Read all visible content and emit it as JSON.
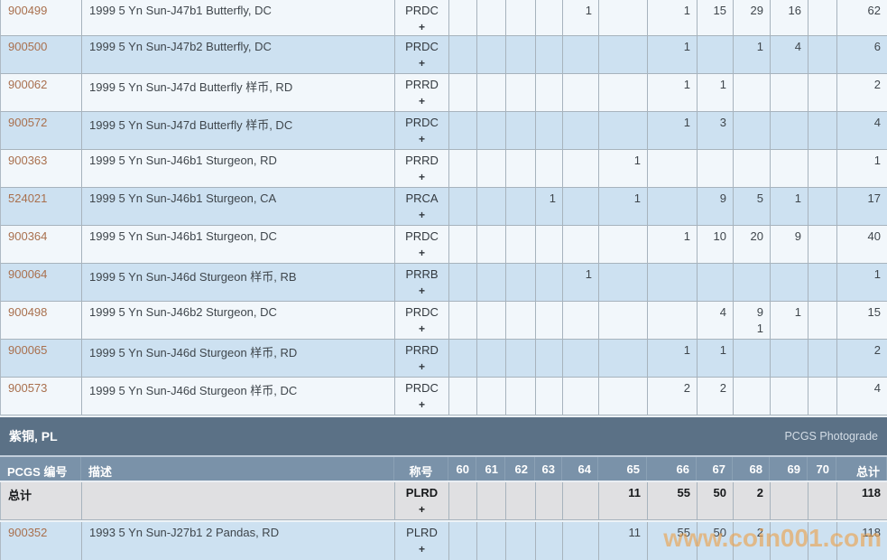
{
  "columns": {
    "id_label": "PCGS 编号",
    "desc_label": "描述",
    "designation_label": "称号",
    "total_label": "总计"
  },
  "grade_headers": [
    "60",
    "61",
    "62",
    "63",
    "64",
    "65",
    "66",
    "67",
    "68",
    "69",
    "70"
  ],
  "top_section": {
    "rows": [
      {
        "id": "900499",
        "desc": "1999 5 Yn Sun-J47b1 Butterfly, DC",
        "designation": "PRDC",
        "plus": "+",
        "grades": [
          "",
          "",
          "",
          "",
          "1",
          "",
          "1",
          "15",
          "29",
          "16",
          ""
        ],
        "grades2": [
          "",
          "",
          "",
          "",
          "",
          "",
          "",
          "",
          "",
          "",
          ""
        ],
        "total": "62"
      },
      {
        "id": "900500",
        "desc": "1999 5 Yn Sun-J47b2 Butterfly, DC",
        "designation": "PRDC",
        "plus": "+",
        "grades": [
          "",
          "",
          "",
          "",
          "",
          "",
          "1",
          "",
          "1",
          "4",
          ""
        ],
        "grades2": [
          "",
          "",
          "",
          "",
          "",
          "",
          "",
          "",
          "",
          "",
          ""
        ],
        "total": "6"
      },
      {
        "id": "900062",
        "desc": "1999 5 Yn Sun-J47d Butterfly 样币, RD",
        "designation": "PRRD",
        "plus": "+",
        "grades": [
          "",
          "",
          "",
          "",
          "",
          "",
          "1",
          "1",
          "",
          "",
          ""
        ],
        "grades2": [
          "",
          "",
          "",
          "",
          "",
          "",
          "",
          "",
          "",
          "",
          ""
        ],
        "total": "2"
      },
      {
        "id": "900572",
        "desc": "1999 5 Yn Sun-J47d Butterfly 样币, DC",
        "designation": "PRDC",
        "plus": "+",
        "grades": [
          "",
          "",
          "",
          "",
          "",
          "",
          "1",
          "3",
          "",
          "",
          ""
        ],
        "grades2": [
          "",
          "",
          "",
          "",
          "",
          "",
          "",
          "",
          "",
          "",
          ""
        ],
        "total": "4"
      },
      {
        "id": "900363",
        "desc": "1999 5 Yn Sun-J46b1 Sturgeon, RD",
        "designation": "PRRD",
        "plus": "+",
        "grades": [
          "",
          "",
          "",
          "",
          "",
          "1",
          "",
          "",
          "",
          "",
          ""
        ],
        "grades2": [
          "",
          "",
          "",
          "",
          "",
          "",
          "",
          "",
          "",
          "",
          ""
        ],
        "total": "1"
      },
      {
        "id": "524021",
        "desc": "1999 5 Yn Sun-J46b1 Sturgeon, CA",
        "designation": "PRCA",
        "plus": "+",
        "grades": [
          "",
          "",
          "",
          "1",
          "",
          "1",
          "",
          "9",
          "5",
          "1",
          ""
        ],
        "grades2": [
          "",
          "",
          "",
          "",
          "",
          "",
          "",
          "",
          "",
          "",
          ""
        ],
        "total": "17"
      },
      {
        "id": "900364",
        "desc": "1999 5 Yn Sun-J46b1 Sturgeon, DC",
        "designation": "PRDC",
        "plus": "+",
        "grades": [
          "",
          "",
          "",
          "",
          "",
          "",
          "1",
          "10",
          "20",
          "9",
          ""
        ],
        "grades2": [
          "",
          "",
          "",
          "",
          "",
          "",
          "",
          "",
          "",
          "",
          ""
        ],
        "total": "40"
      },
      {
        "id": "900064",
        "desc": "1999 5 Yn Sun-J46d Sturgeon 样币, RB",
        "designation": "PRRB",
        "plus": "+",
        "grades": [
          "",
          "",
          "",
          "",
          "1",
          "",
          "",
          "",
          "",
          "",
          ""
        ],
        "grades2": [
          "",
          "",
          "",
          "",
          "",
          "",
          "",
          "",
          "",
          "",
          ""
        ],
        "total": "1"
      },
      {
        "id": "900498",
        "desc": "1999 5 Yn Sun-J46b2 Sturgeon, DC",
        "designation": "PRDC",
        "plus": "+",
        "grades": [
          "",
          "",
          "",
          "",
          "",
          "",
          "",
          "4",
          "9",
          "1",
          ""
        ],
        "grades2": [
          "",
          "",
          "",
          "",
          "",
          "",
          "",
          "",
          "1",
          "",
          ""
        ],
        "total": "15"
      },
      {
        "id": "900065",
        "desc": "1999 5 Yn Sun-J46d Sturgeon 样币, RD",
        "designation": "PRRD",
        "plus": "+",
        "grades": [
          "",
          "",
          "",
          "",
          "",
          "",
          "1",
          "1",
          "",
          "",
          ""
        ],
        "grades2": [
          "",
          "",
          "",
          "",
          "",
          "",
          "",
          "",
          "",
          "",
          ""
        ],
        "total": "2"
      },
      {
        "id": "900573",
        "desc": "1999 5 Yn Sun-J46d Sturgeon 样币, DC",
        "designation": "PRDC",
        "plus": "+",
        "grades": [
          "",
          "",
          "",
          "",
          "",
          "",
          "2",
          "2",
          "",
          "",
          ""
        ],
        "grades2": [
          "",
          "",
          "",
          "",
          "",
          "",
          "",
          "",
          "",
          "",
          ""
        ],
        "total": "4"
      }
    ]
  },
  "bottom_section": {
    "title": "紫铜, PL",
    "right_label": "PCGS Photograde",
    "total_row": {
      "label": "总计",
      "desc": "",
      "designation": "PLRD",
      "plus": "+",
      "grades": [
        "",
        "",
        "",
        "",
        "",
        "11",
        "55",
        "50",
        "2",
        "",
        ""
      ],
      "grades2": [
        "",
        "",
        "",
        "",
        "",
        "",
        "",
        "",
        "",
        "",
        ""
      ],
      "total": "118"
    },
    "rows": [
      {
        "id": "900352",
        "desc": "1993 5 Yn Sun-J27b1 2 Pandas, RD",
        "designation": "PLRD",
        "plus": "+",
        "grades": [
          "",
          "",
          "",
          "",
          "",
          "11",
          "55",
          "50",
          "2",
          "",
          ""
        ],
        "grades2": [
          "",
          "",
          "",
          "",
          "",
          "",
          "",
          "",
          "",
          "",
          ""
        ],
        "total": "118"
      }
    ]
  },
  "watermark": "www.coin001.com",
  "colors": {
    "section_bar": "#5b7186",
    "column_header": "#7a92a9",
    "row_light": "#f2f7fb",
    "row_blue": "#cde1f1",
    "row_gray": "#e0e0e2",
    "grid_border": "#a7b3bd",
    "id_link": "#a9704e",
    "watermark_orange": "#ec9f48"
  }
}
